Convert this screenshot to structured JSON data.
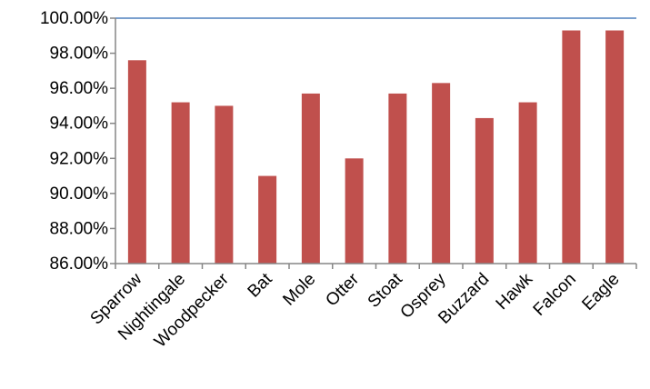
{
  "chart_data": {
    "type": "bar",
    "title": "",
    "xlabel": "",
    "ylabel": "",
    "categories": [
      "Sparrow",
      "Nightingale",
      "Woodpecker",
      "Bat",
      "Mole",
      "Otter",
      "Stoat",
      "Osprey",
      "Buzzard",
      "Hawk",
      "Falcon",
      "Eagle"
    ],
    "series": [
      {
        "values": [
          97.6,
          95.2,
          95.0,
          91.0,
          95.7,
          92.0,
          95.7,
          96.3,
          94.3,
          95.2,
          99.3,
          99.3
        ],
        "color": "#c0504d"
      }
    ],
    "ylim": [
      86,
      100
    ],
    "yticks": [
      "86.00%",
      "88.00%",
      "90.00%",
      "92.00%",
      "94.00%",
      "96.00%",
      "98.00%",
      "100.00%"
    ],
    "grid": false,
    "legend": "none",
    "colors": {
      "bar": "#c0504d",
      "top_border": "#4f81bd",
      "axis": "#868686"
    }
  }
}
